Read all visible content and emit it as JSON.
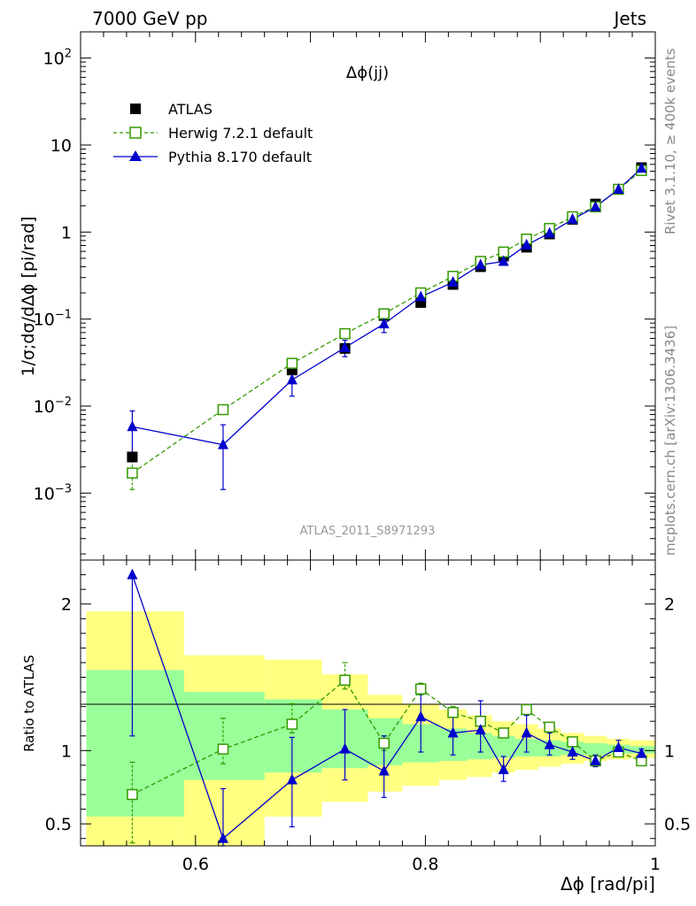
{
  "header": {
    "left": "7000 GeV pp",
    "right": "Jets"
  },
  "side_labels": {
    "rivet": "Rivet 3.1.10, ≥ 400k events",
    "mcplots": "mcplots.cern.ch [arXiv:1306.3436]"
  },
  "chart_data": [
    {
      "type": "scatter",
      "title": "Δϕ(jj)",
      "watermark": "ATLAS_2011_S8971293",
      "ylabel": "1/σ;dσ/dΔϕ [pi/rad]",
      "yscale": "log",
      "xlim": [
        0.5,
        1.0
      ],
      "ylim": [
        0.00017,
        200
      ],
      "x_ticks": [
        "0.6",
        "0.8",
        "1"
      ],
      "y_ticks": [
        {
          "base": "10",
          "exp": "2"
        },
        {
          "base": "10",
          "exp": ""
        },
        {
          "base": "1",
          "exp": ""
        },
        {
          "base": "10",
          "exp": "−1"
        },
        {
          "base": "10",
          "exp": "−2"
        },
        {
          "base": "10",
          "exp": "−3"
        }
      ],
      "legend_position": "top-left",
      "series": [
        {
          "name": "ATLAS",
          "color": "#000000",
          "marker": "filled-square",
          "x": [
            0.545,
            0.624,
            0.684,
            0.73,
            0.764,
            0.796,
            0.824,
            0.848,
            0.868,
            0.888,
            0.908,
            0.928,
            0.948,
            0.968,
            0.988
          ],
          "y": [
            0.0026,
            0.0091,
            0.026,
            0.046,
            0.11,
            0.155,
            0.25,
            0.4,
            0.53,
            0.67,
            0.95,
            1.4,
            2.1,
            3.1,
            5.5
          ]
        },
        {
          "name": "Herwig 7.2.1 default",
          "color": "#339900",
          "marker": "open-square",
          "line": "dashed",
          "x": [
            0.545,
            0.624,
            0.684,
            0.73,
            0.764,
            0.796,
            0.824,
            0.848,
            0.868,
            0.888,
            0.908,
            0.928,
            0.948,
            0.968,
            0.988
          ],
          "y": [
            0.0017,
            0.0091,
            0.031,
            0.068,
            0.115,
            0.2,
            0.31,
            0.46,
            0.59,
            0.83,
            1.1,
            1.5,
            1.95,
            3.1,
            5.1
          ],
          "yerr": [
            0.0006,
            0.001,
            0.002,
            0.004,
            0.005,
            0.008,
            0.01,
            0.01,
            0.01,
            0.01,
            0.02,
            0.02,
            0.03,
            0.04,
            0.05
          ]
        },
        {
          "name": "Pythia 8.170 default",
          "color": "#0000cc",
          "marker": "filled-triangle",
          "line": "solid",
          "x": [
            0.545,
            0.624,
            0.684,
            0.73,
            0.764,
            0.796,
            0.824,
            0.848,
            0.868,
            0.888,
            0.908,
            0.928,
            0.948,
            0.968,
            0.988
          ],
          "y": [
            0.0058,
            0.0036,
            0.02,
            0.047,
            0.088,
            0.18,
            0.265,
            0.42,
            0.46,
            0.71,
            0.97,
            1.4,
            1.95,
            3.1,
            5.4
          ],
          "yerr": [
            0.003,
            0.0025,
            0.007,
            0.01,
            0.018,
            0.015,
            0.02,
            0.03,
            0.04,
            0.05,
            0.05,
            0.06,
            0.08,
            0.1,
            0.15
          ]
        }
      ]
    },
    {
      "type": "scatter",
      "ylabel": "Ratio to ATLAS",
      "xlabel": "Δϕ [rad/pi]",
      "xlim": [
        0.5,
        1.0
      ],
      "ylim": [
        0.35,
        2.3
      ],
      "x_ticks": [
        "0.6",
        "0.8",
        "1"
      ],
      "y_ticks": [
        "2",
        "1",
        "0.5"
      ],
      "reference_line": 1,
      "bands": {
        "edges": [
          0.505,
          0.59,
          0.66,
          0.71,
          0.75,
          0.78,
          0.812,
          0.836,
          0.858,
          0.878,
          0.898,
          0.918,
          0.938,
          0.958,
          0.978,
          1.0
        ],
        "yellow": [
          [
            0.35,
            1.95
          ],
          [
            0.35,
            1.65
          ],
          [
            0.55,
            1.62
          ],
          [
            0.65,
            1.52
          ],
          [
            0.72,
            1.38
          ],
          [
            0.76,
            1.32
          ],
          [
            0.8,
            1.28
          ],
          [
            0.82,
            1.24
          ],
          [
            0.85,
            1.2
          ],
          [
            0.87,
            1.18
          ],
          [
            0.89,
            1.15
          ],
          [
            0.91,
            1.12
          ],
          [
            0.93,
            1.1
          ],
          [
            0.94,
            1.08
          ],
          [
            0.95,
            1.07
          ]
        ],
        "green": [
          [
            0.55,
            1.55
          ],
          [
            0.8,
            1.4
          ],
          [
            0.85,
            1.35
          ],
          [
            0.88,
            1.28
          ],
          [
            0.9,
            1.22
          ],
          [
            0.92,
            1.18
          ],
          [
            0.93,
            1.15
          ],
          [
            0.94,
            1.12
          ],
          [
            0.95,
            1.1
          ],
          [
            0.96,
            1.08
          ],
          [
            0.96,
            1.07
          ],
          [
            0.97,
            1.06
          ],
          [
            0.97,
            1.05
          ],
          [
            0.98,
            1.04
          ],
          [
            0.98,
            1.03
          ]
        ]
      },
      "series": [
        {
          "name": "Herwig 7.2.1 default",
          "color": "#339900",
          "x": [
            0.545,
            0.624,
            0.684,
            0.73,
            0.764,
            0.796,
            0.824,
            0.848,
            0.868,
            0.888,
            0.908,
            0.928,
            0.948,
            0.968,
            0.988
          ],
          "y": [
            0.7,
            1.01,
            1.18,
            1.48,
            1.05,
            1.42,
            1.26,
            1.2,
            1.12,
            1.28,
            1.16,
            1.06,
            0.93,
            0.99,
            0.93
          ],
          "err_low": [
            0.37,
            0.91,
            1.12,
            1.42,
            1.0,
            1.38,
            1.23,
            1.17,
            1.1,
            1.26,
            1.14,
            1.04,
            0.92,
            0.98,
            0.92
          ],
          "err_high": [
            0.92,
            1.22,
            1.32,
            1.6,
            1.1,
            1.46,
            1.3,
            1.23,
            1.15,
            1.3,
            1.18,
            1.08,
            0.94,
            1.0,
            0.94
          ]
        },
        {
          "name": "Pythia 8.170 default",
          "color": "#0000cc",
          "x": [
            0.545,
            0.624,
            0.684,
            0.73,
            0.764,
            0.796,
            0.824,
            0.848,
            0.868,
            0.888,
            0.908,
            0.928,
            0.948,
            0.968,
            0.988
          ],
          "y": [
            2.2,
            0.4,
            0.8,
            1.01,
            0.86,
            1.23,
            1.12,
            1.14,
            0.87,
            1.12,
            1.04,
            0.99,
            0.93,
            1.02,
            0.98
          ],
          "err_low": [
            1.1,
            0.33,
            0.48,
            0.8,
            0.68,
            0.99,
            0.97,
            0.99,
            0.79,
            0.99,
            0.97,
            0.94,
            0.89,
            0.97,
            0.95
          ],
          "err_high": [
            2.2,
            0.74,
            1.09,
            1.28,
            1.1,
            1.4,
            1.26,
            1.34,
            0.96,
            1.24,
            1.12,
            1.04,
            0.97,
            1.07,
            1.01
          ]
        }
      ]
    }
  ]
}
